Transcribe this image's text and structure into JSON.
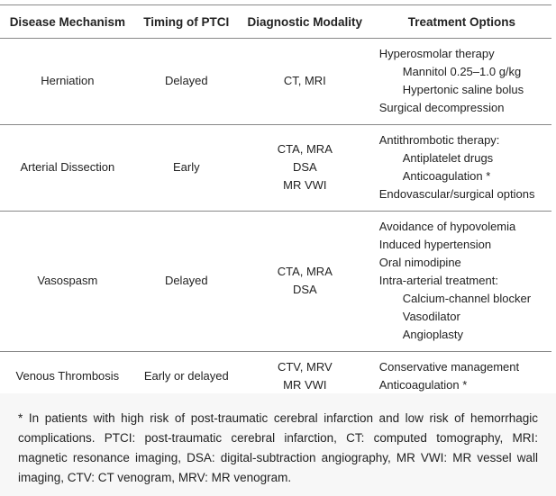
{
  "table": {
    "headers": [
      "Disease Mechanism",
      "Timing of PTCI",
      "Diagnostic Modality",
      "Treatment Options"
    ],
    "rows": [
      {
        "mechanism": "Herniation",
        "timing": "Delayed",
        "modality": [
          "CT, MRI"
        ],
        "treatment": [
          {
            "text": "Hyperosmolar therapy",
            "items": [
              "Mannitol 0.25–1.0 g/kg",
              "Hypertonic saline bolus"
            ]
          },
          {
            "text": "Surgical decompression",
            "items": []
          }
        ]
      },
      {
        "mechanism": "Arterial Dissection",
        "timing": "Early",
        "modality": [
          "CTA, MRA",
          "DSA",
          "MR VWI"
        ],
        "treatment": [
          {
            "text": "Antithrombotic therapy:",
            "items": [
              "Antiplatelet drugs",
              "Anticoagulation *"
            ]
          },
          {
            "text": "Endovascular/surgical options",
            "items": []
          }
        ]
      },
      {
        "mechanism": "Vasospasm",
        "timing": "Delayed",
        "modality": [
          "CTA, MRA",
          "DSA"
        ],
        "treatment": [
          {
            "text": "Avoidance of hypovolemia",
            "items": []
          },
          {
            "text": "Induced hypertension",
            "items": []
          },
          {
            "text": "Oral nimodipine",
            "items": []
          },
          {
            "text": "Intra-arterial treatment:",
            "items": [
              "Calcium-channel blocker",
              "Vasodilator",
              "Angioplasty"
            ]
          }
        ]
      },
      {
        "mechanism": "Venous Thrombosis",
        "timing": "Early or delayed",
        "modality": [
          "CTV, MRV",
          "MR VWI"
        ],
        "treatment": [
          {
            "text": "Conservative management",
            "items": []
          },
          {
            "text": "Anticoagulation *",
            "items": []
          }
        ]
      }
    ]
  },
  "footnote": "* In patients with high risk of post-traumatic cerebral infarction and low risk of hemorrhagic complications. PTCI: post-traumatic cerebral infarction, CT: computed tomography, MRI: magnetic resonance imaging, DSA: digital-subtraction angiography, MR VWI: MR vessel wall imaging, CTV: CT venogram, MRV: MR venogram."
}
